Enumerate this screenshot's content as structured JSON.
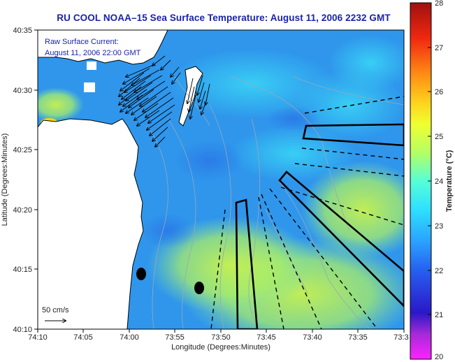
{
  "title": "RU COOL  NOAA–15  Sea Surface Temperature:  August 11, 2006 2232 GMT",
  "annotation": {
    "line1": "Raw Surface Current:",
    "line2": "August 11, 2006 22:00 GMT"
  },
  "scale_vector_label": "50 cm/s",
  "x_axis": {
    "label": "Longitude (Degrees:Minutes)",
    "ticks": [
      "74:10",
      "74:05",
      "74:00",
      "73:55",
      "73:50",
      "73:45",
      "73:40",
      "73:35",
      "73:3"
    ]
  },
  "y_axis": {
    "label": "Latitude (Degrees:Minutes)",
    "ticks": [
      "40:35",
      "40:30",
      "40:25",
      "40:20",
      "40:15",
      "40:10"
    ]
  },
  "colorbar": {
    "label": "Temperature (°C)",
    "ticks": [
      "28",
      "27",
      "26",
      "25",
      "24",
      "23",
      "22",
      "21",
      "20"
    ],
    "min": 20,
    "max": 28
  },
  "colors": {
    "title": "#1a23a8",
    "land": "#ffffff",
    "water_cool": "#2f8fe8",
    "water_warm": "#c8f046"
  }
}
